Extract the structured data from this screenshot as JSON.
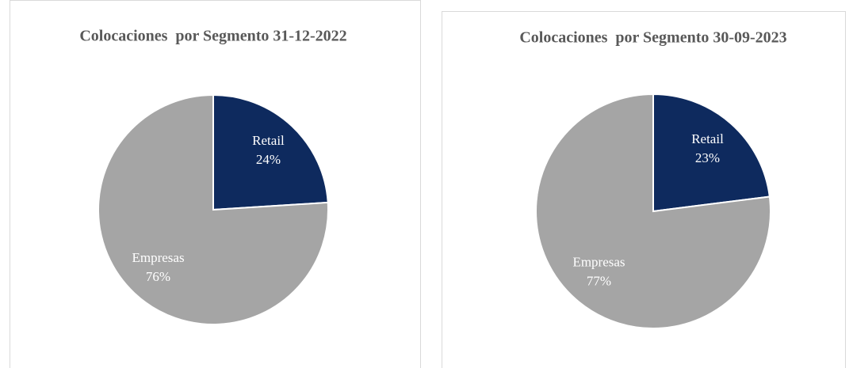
{
  "chart_data": [
    {
      "type": "pie",
      "title": "Colocaciones  por Segmento 31-12-2022",
      "categories": [
        "Retail",
        "Empresas"
      ],
      "values": [
        24,
        76
      ],
      "value_labels": [
        "24%",
        "76%"
      ],
      "colors": [
        "#0e2a5e",
        "#a5a5a5"
      ]
    },
    {
      "type": "pie",
      "title": "Colocaciones  por Segmento 30-09-2023",
      "categories": [
        "Retail",
        "Empresas"
      ],
      "values": [
        23,
        77
      ],
      "value_labels": [
        "23%",
        "77%"
      ],
      "colors": [
        "#0e2a5e",
        "#a5a5a5"
      ]
    }
  ]
}
